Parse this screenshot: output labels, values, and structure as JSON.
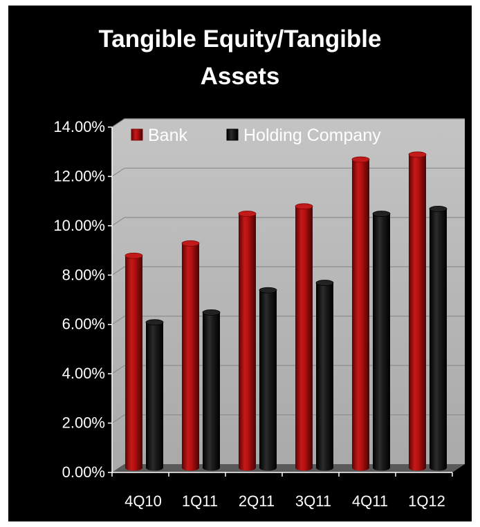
{
  "chart_data": {
    "type": "bar",
    "title_lines": [
      "Tangible Equity/Tangible",
      "Assets"
    ],
    "categories": [
      "4Q10",
      "1Q11",
      "2Q11",
      "3Q11",
      "4Q11",
      "1Q12"
    ],
    "series": [
      {
        "name": "Bank",
        "values": [
          8.6,
          9.1,
          10.3,
          10.6,
          12.5,
          12.7
        ],
        "color": "#a50d0d"
      },
      {
        "name": "Holding Company",
        "values": [
          5.9,
          6.3,
          7.2,
          7.5,
          10.3,
          10.5
        ],
        "color": "#141414"
      }
    ],
    "y_ticks": [
      "0.00%",
      "2.00%",
      "4.00%",
      "6.00%",
      "8.00%",
      "10.00%",
      "12.00%",
      "14.00%"
    ],
    "ylim": [
      0,
      14
    ],
    "grid": true,
    "legend_position": "top",
    "plot_background": "#b5b5b5",
    "page_background": "#000000"
  }
}
